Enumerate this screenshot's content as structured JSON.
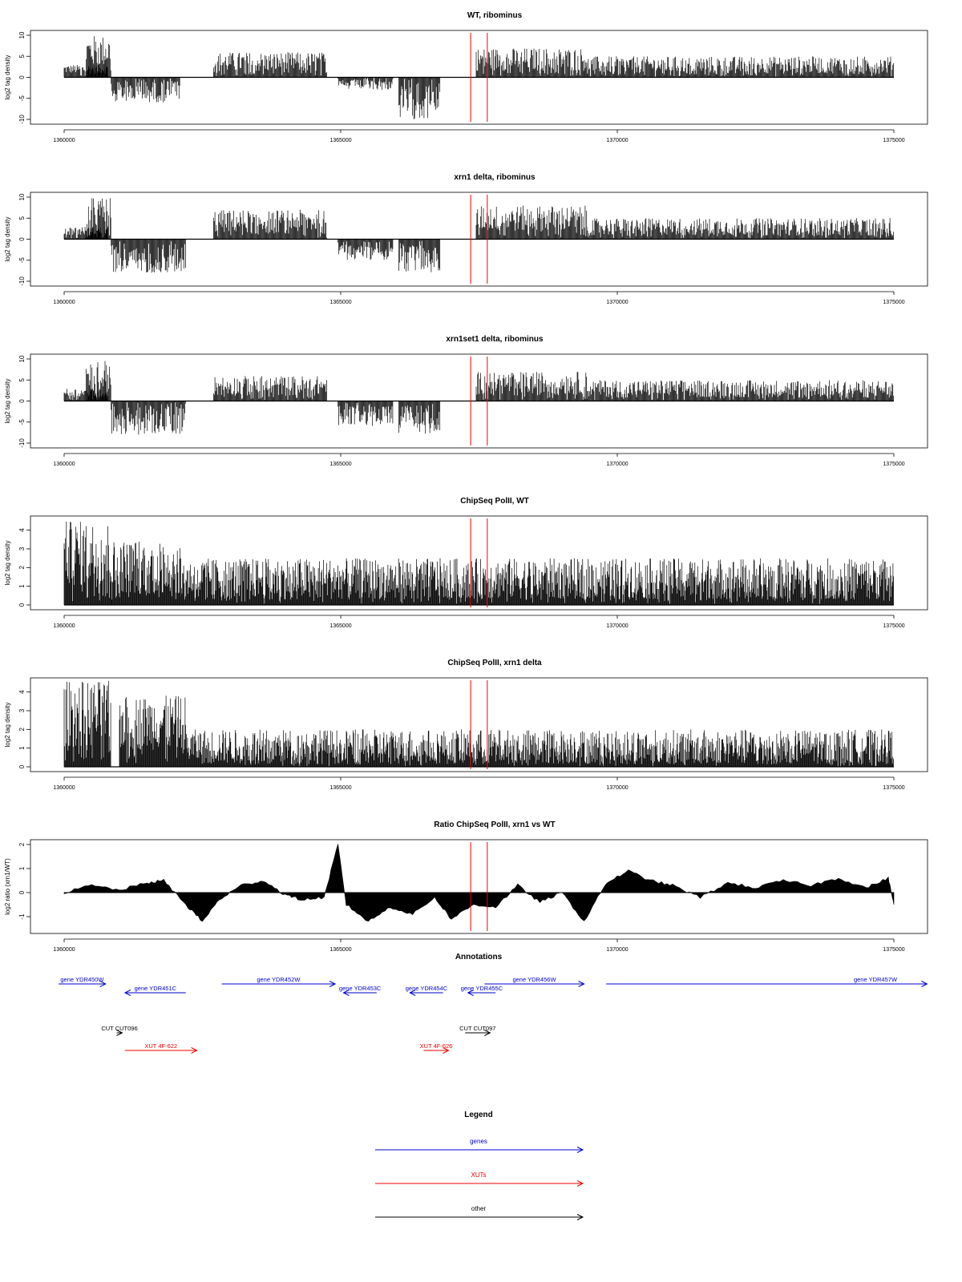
{
  "chart_data": [
    {
      "type": "bar",
      "title": "WT, ribominus",
      "ylabel": "log2 tag density",
      "xlim": [
        1360000,
        1375000
      ],
      "ylim": [
        -10,
        10
      ],
      "xticks": [
        "1360000",
        "1365000",
        "1370000",
        "1375000"
      ],
      "yticks": [
        "-10",
        "-5",
        "0",
        "5",
        "10"
      ],
      "markers": [
        1367350,
        1367650
      ],
      "segments": [
        {
          "x": [
            1360000,
            1360800
          ],
          "y": [
            3,
            3
          ],
          "strand": "+"
        },
        {
          "x": [
            1360400,
            1360850
          ],
          "y": [
            8,
            10
          ],
          "strand": "+"
        },
        {
          "x": [
            1360850,
            1362100
          ],
          "y": [
            -3,
            -6
          ],
          "strand": "-"
        },
        {
          "x": [
            1362700,
            1364750
          ],
          "y": [
            4,
            6
          ],
          "strand": "+"
        },
        {
          "x": [
            1364950,
            1365950
          ],
          "y": [
            -2,
            -3
          ],
          "strand": "-"
        },
        {
          "x": [
            1366050,
            1366800
          ],
          "y": [
            -6,
            -10
          ],
          "strand": "-"
        },
        {
          "x": [
            1367450,
            1369450
          ],
          "y": [
            5,
            7
          ],
          "strand": "+"
        },
        {
          "x": [
            1369450,
            1375000
          ],
          "y": [
            3,
            5
          ],
          "strand": "+"
        }
      ]
    },
    {
      "type": "bar",
      "title": "xrn1 delta, ribominus",
      "ylabel": "log2 tag density",
      "xlim": [
        1360000,
        1375000
      ],
      "ylim": [
        -10,
        10
      ],
      "xticks": [
        "1360000",
        "1365000",
        "1370000",
        "1375000"
      ],
      "yticks": [
        "-10",
        "-5",
        "0",
        "5",
        "10"
      ],
      "markers": [
        1367350,
        1367650
      ],
      "segments": [
        {
          "x": [
            1360000,
            1360800
          ],
          "y": [
            3,
            3
          ],
          "strand": "+"
        },
        {
          "x": [
            1360400,
            1360850
          ],
          "y": [
            8,
            10
          ],
          "strand": "+"
        },
        {
          "x": [
            1360850,
            1362200
          ],
          "y": [
            -6,
            -8
          ],
          "strand": "-"
        },
        {
          "x": [
            1362700,
            1364750
          ],
          "y": [
            5,
            7
          ],
          "strand": "+"
        },
        {
          "x": [
            1364950,
            1365950
          ],
          "y": [
            -4,
            -5
          ],
          "strand": "-"
        },
        {
          "x": [
            1366050,
            1366800
          ],
          "y": [
            -5,
            -8
          ],
          "strand": "-"
        },
        {
          "x": [
            1367450,
            1369450
          ],
          "y": [
            6,
            8
          ],
          "strand": "+"
        },
        {
          "x": [
            1369450,
            1375000
          ],
          "y": [
            3,
            5
          ],
          "strand": "+"
        }
      ]
    },
    {
      "type": "bar",
      "title": "xrn1set1 delta, ribominus",
      "ylabel": "log2 tag density",
      "xlim": [
        1360000,
        1375000
      ],
      "ylim": [
        -10,
        10
      ],
      "xticks": [
        "1360000",
        "1365000",
        "1370000",
        "1375000"
      ],
      "yticks": [
        "-10",
        "-5",
        "0",
        "5",
        "10"
      ],
      "markers": [
        1367350,
        1367650
      ],
      "segments": [
        {
          "x": [
            1360000,
            1360800
          ],
          "y": [
            3,
            3
          ],
          "strand": "+"
        },
        {
          "x": [
            1360400,
            1360850
          ],
          "y": [
            7,
            10
          ],
          "strand": "+"
        },
        {
          "x": [
            1360850,
            1362200
          ],
          "y": [
            -5,
            -8
          ],
          "strand": "-"
        },
        {
          "x": [
            1362700,
            1364750
          ],
          "y": [
            4,
            6
          ],
          "strand": "+"
        },
        {
          "x": [
            1364950,
            1365950
          ],
          "y": [
            -4,
            -6
          ],
          "strand": "-"
        },
        {
          "x": [
            1366050,
            1366800
          ],
          "y": [
            -5,
            -8
          ],
          "strand": "-"
        },
        {
          "x": [
            1367450,
            1369450
          ],
          "y": [
            5,
            7
          ],
          "strand": "+"
        },
        {
          "x": [
            1369450,
            1375000
          ],
          "y": [
            3,
            5
          ],
          "strand": "+"
        }
      ]
    },
    {
      "type": "bar",
      "title": "ChipSeq PolII, WT",
      "ylabel": "log2 tag density",
      "xlim": [
        1360000,
        1375000
      ],
      "ylim": [
        0,
        4.5
      ],
      "xticks": [
        "1360000",
        "1365000",
        "1370000",
        "1375000"
      ],
      "yticks": [
        "0",
        "1",
        "2",
        "3",
        "4"
      ],
      "markers": [
        1367350,
        1367650
      ],
      "segments": [
        {
          "x": [
            1360000,
            1360850
          ],
          "y": [
            3.2,
            4.5
          ],
          "strand": "+"
        },
        {
          "x": [
            1360850,
            1362100
          ],
          "y": [
            2.0,
            3.5
          ],
          "strand": "+"
        },
        {
          "x": [
            1362100,
            1375000
          ],
          "y": [
            1.0,
            2.5
          ],
          "strand": "+"
        }
      ]
    },
    {
      "type": "bar",
      "title": "ChipSeq PolII, xrn1 delta",
      "ylabel": "log2 tag density",
      "xlim": [
        1360000,
        1375000
      ],
      "ylim": [
        0,
        4.5
      ],
      "xticks": [
        "1360000",
        "1365000",
        "1370000",
        "1375000"
      ],
      "yticks": [
        "0",
        "1",
        "2",
        "3",
        "4"
      ],
      "markers": [
        1367350,
        1367650
      ],
      "segments": [
        {
          "x": [
            1360000,
            1360850
          ],
          "y": [
            3.5,
            4.6
          ],
          "strand": "+"
        },
        {
          "x": [
            1361000,
            1362200
          ],
          "y": [
            3.0,
            3.8
          ],
          "strand": "+"
        },
        {
          "x": [
            1362200,
            1375000
          ],
          "y": [
            0.5,
            2.0
          ],
          "strand": "+"
        }
      ]
    },
    {
      "type": "area",
      "title": "Ratio ChipSeq PolII, xrn1 vs WT",
      "ylabel": "log2 ratio (xrn1/WT)",
      "xlim": [
        1360000,
        1375000
      ],
      "ylim": [
        -1.5,
        2
      ],
      "xticks": [
        "1360000",
        "1365000",
        "1370000",
        "1375000"
      ],
      "yticks": [
        "-1",
        "0",
        "1",
        "2"
      ],
      "markers": [
        1367350,
        1367650
      ],
      "x": [
        1360000,
        1360500,
        1361000,
        1361500,
        1361800,
        1362200,
        1362500,
        1362800,
        1363200,
        1363600,
        1364000,
        1364300,
        1364700,
        1364950,
        1365100,
        1365500,
        1365900,
        1366300,
        1366700,
        1367000,
        1367400,
        1367800,
        1368200,
        1368600,
        1369000,
        1369400,
        1369800,
        1370200,
        1370600,
        1371000,
        1371500,
        1372000,
        1372500,
        1373000,
        1373500,
        1374000,
        1374500,
        1374900,
        1375000
      ],
      "y": [
        0.0,
        0.3,
        0.1,
        0.4,
        0.5,
        -0.5,
        -1.2,
        -0.3,
        0.3,
        0.5,
        -0.1,
        -0.3,
        -0.2,
        2.0,
        -0.5,
        -1.2,
        -0.6,
        -0.9,
        -0.2,
        -1.1,
        -0.5,
        -0.6,
        0.3,
        -0.4,
        0.0,
        -1.2,
        0.4,
        0.9,
        0.5,
        0.3,
        -0.2,
        0.4,
        0.2,
        0.5,
        0.3,
        0.6,
        0.2,
        0.6,
        -0.5
      ]
    }
  ],
  "annotations": {
    "title": "Annotations",
    "xlim": [
      1360000,
      1375000
    ],
    "features": [
      {
        "label": "gene YDR450W",
        "kind": "gene",
        "start": 1359900,
        "end": 1360750,
        "strand": "+",
        "row": 0
      },
      {
        "label": "gene YDR451C",
        "kind": "gene",
        "start": 1361100,
        "end": 1362200,
        "strand": "-",
        "row": 1
      },
      {
        "label": "gene YDR452W",
        "kind": "gene",
        "start": 1362850,
        "end": 1364900,
        "strand": "+",
        "row": 0
      },
      {
        "label": "gene YDR453C",
        "kind": "gene",
        "start": 1365050,
        "end": 1365650,
        "strand": "-",
        "row": 1
      },
      {
        "label": "gene YDR454C",
        "kind": "gene",
        "start": 1366250,
        "end": 1366850,
        "strand": "-",
        "row": 1
      },
      {
        "label": "gene YDR455C",
        "kind": "gene",
        "start": 1367300,
        "end": 1367800,
        "strand": "-",
        "row": 1
      },
      {
        "label": "gene YDR456W",
        "kind": "gene",
        "start": 1367600,
        "end": 1369400,
        "strand": "+",
        "row": 0
      },
      {
        "label": "gene YDR457W",
        "kind": "gene",
        "start": 1369800,
        "end": 1375600,
        "strand": "+",
        "row": 0
      },
      {
        "label": "CUT CUT096",
        "kind": "other",
        "start": 1360950,
        "end": 1361050,
        "strand": "+",
        "row": 3
      },
      {
        "label": "CUT CUT097",
        "kind": "other",
        "start": 1367250,
        "end": 1367700,
        "strand": "+",
        "row": 3
      },
      {
        "label": "XUT 4F-622",
        "kind": "xut",
        "start": 1361100,
        "end": 1362400,
        "strand": "+",
        "row": 4
      },
      {
        "label": "XUT 4F-626",
        "kind": "xut",
        "start": 1366500,
        "end": 1366950,
        "strand": "+",
        "row": 4
      }
    ]
  },
  "legend": {
    "title": "Legend",
    "items": [
      {
        "label": "genes",
        "kind": "gene"
      },
      {
        "label": "XUTs",
        "kind": "xut"
      },
      {
        "label": "other",
        "kind": "other"
      }
    ]
  },
  "colors": {
    "gene": "#0000cc",
    "xut": "#ee0000",
    "other": "#000000",
    "marker": "#ee0000",
    "bars": "#000000"
  }
}
